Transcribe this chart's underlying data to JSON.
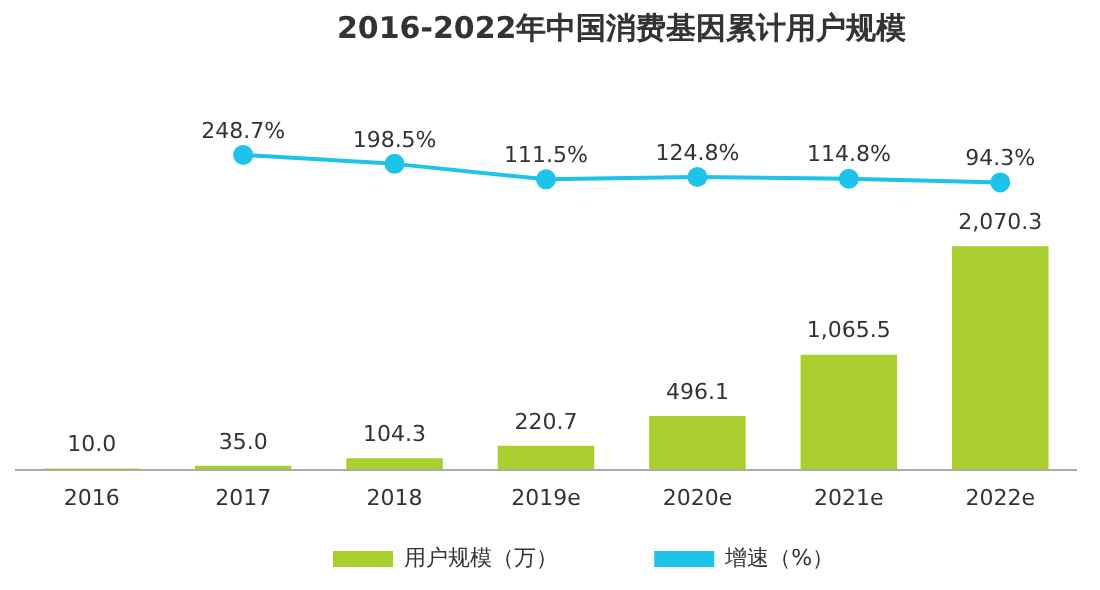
{
  "chart_data": [
    {
      "type": "line",
      "title": "2016-2022年中国消费基因累计用户规模",
      "categories": [
        null,
        null,
        null,
        null,
        null,
        null
      ],
      "series": [
        {
          "name": "增速（%）",
          "color": "#1ec3ea",
          "marker": "circle",
          "values": [
            248.7,
            198.5,
            111.5,
            124.8,
            114.8,
            94.3
          ],
          "value_labels": [
            "248.7%",
            "198.5%",
            "111.5%",
            "124.8%",
            "114.8%",
            "94.3%"
          ]
        }
      ],
      "data_labels": true,
      "legend": "bottom",
      "grid": false
    },
    {
      "type": "bar",
      "categories": [
        "2016",
        "2017",
        "2018",
        "2019e",
        "2020e",
        "2021e",
        "2022e"
      ],
      "series": [
        {
          "name": "用户规模（万）",
          "color": "#a9cf2f",
          "values": [
            10.0,
            35.0,
            104.3,
            220.7,
            496.1,
            1065.5,
            2070.3
          ],
          "value_labels": [
            "10.0",
            "35.0",
            "104.3",
            "220.7",
            "496.1",
            "1,065.5",
            "2,070.3"
          ]
        }
      ],
      "data_labels": true,
      "legend": "bottom",
      "grid": false
    }
  ]
}
